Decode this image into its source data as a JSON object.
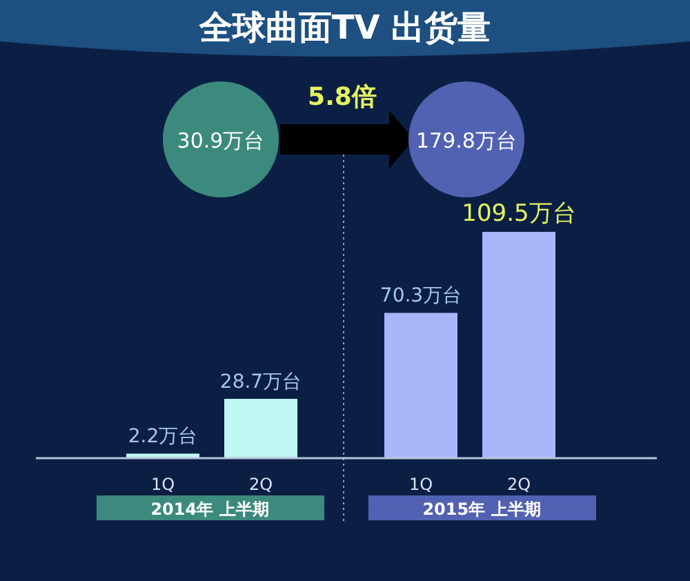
{
  "chart_data": {
    "type": "bar",
    "title": "全球曲面TV 出货量",
    "categories": [
      "1Q",
      "2Q",
      "1Q",
      "2Q"
    ],
    "values": [
      2.2,
      28.7,
      70.3,
      109.5
    ],
    "colors": [
      "#bff7f2",
      "#bff7f2",
      "#a9b6fa",
      "#a9b6fa"
    ],
    "value_labels": [
      "2.2万台",
      "28.7万台",
      "70.3万台",
      "109.5万台"
    ],
    "annotations": [
      "30.9万台",
      "5.8倍",
      "179.8万台",
      "2014年 上半期",
      "2015年 上半期"
    ]
  }
}
